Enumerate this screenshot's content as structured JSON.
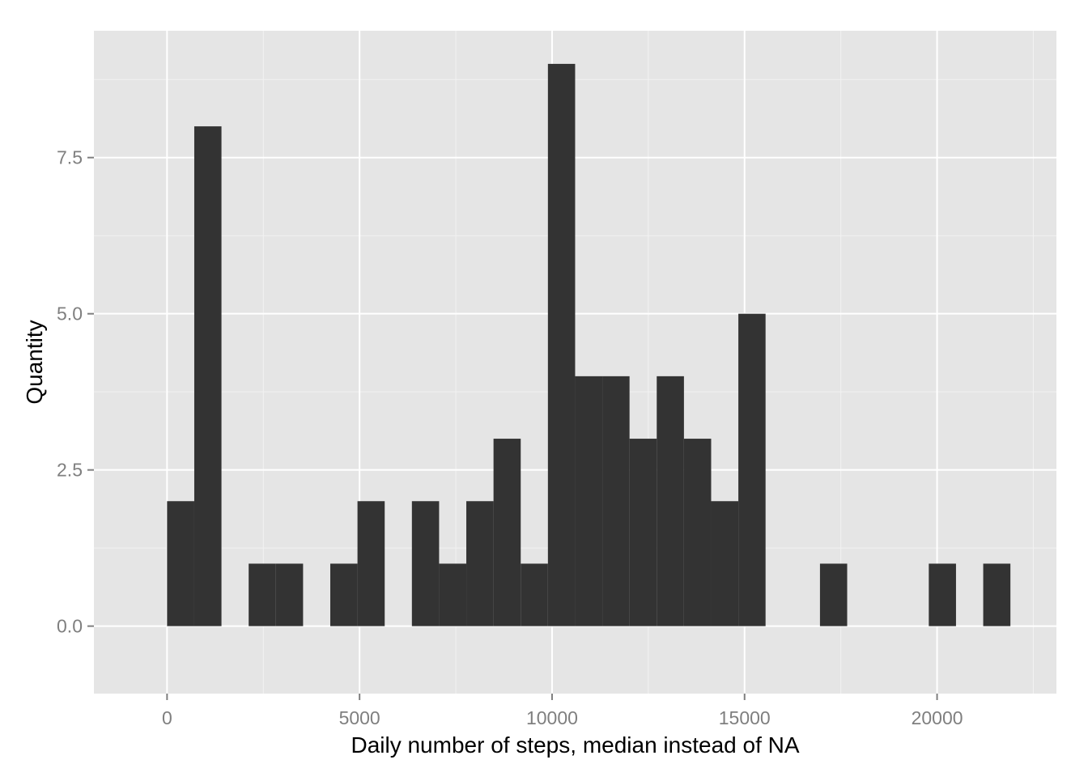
{
  "chart_data": {
    "type": "bar",
    "title": "",
    "xlabel": "Daily number of steps, median instead of NA",
    "ylabel": "Quantity",
    "xlim": [
      -1900,
      23100
    ],
    "ylim": [
      -1.08,
      9.53
    ],
    "x_ticks": [
      0,
      5000,
      10000,
      15000,
      20000
    ],
    "x_tick_labels": [
      "0",
      "5000",
      "10000",
      "15000",
      "20000"
    ],
    "y_ticks": [
      0,
      2.5,
      5,
      7.5
    ],
    "y_tick_labels": [
      "0.0",
      "2.5",
      "5.0",
      "7.5"
    ],
    "bin_width": 706.6,
    "bins": [
      {
        "x0": 0,
        "x1": 706.6,
        "count": 2
      },
      {
        "x0": 706.6,
        "x1": 1413.2,
        "count": 8
      },
      {
        "x0": 2119.8,
        "x1": 2826.4,
        "count": 1
      },
      {
        "x0": 2826.4,
        "x1": 3533,
        "count": 1
      },
      {
        "x0": 4239.6,
        "x1": 4946.2,
        "count": 1
      },
      {
        "x0": 4946.2,
        "x1": 5652.8,
        "count": 2
      },
      {
        "x0": 6359.4,
        "x1": 7066,
        "count": 2
      },
      {
        "x0": 7066,
        "x1": 7772.6,
        "count": 1
      },
      {
        "x0": 7772.6,
        "x1": 8479.2,
        "count": 2
      },
      {
        "x0": 8479.2,
        "x1": 9185.8,
        "count": 3
      },
      {
        "x0": 9185.8,
        "x1": 9892.4,
        "count": 1
      },
      {
        "x0": 9892.4,
        "x1": 10599,
        "count": 9
      },
      {
        "x0": 10599,
        "x1": 11305.6,
        "count": 4
      },
      {
        "x0": 11305.6,
        "x1": 12012.2,
        "count": 4
      },
      {
        "x0": 12012.2,
        "x1": 12718.8,
        "count": 3
      },
      {
        "x0": 12718.8,
        "x1": 13425.4,
        "count": 4
      },
      {
        "x0": 13425.4,
        "x1": 14132,
        "count": 3
      },
      {
        "x0": 14132,
        "x1": 14838.6,
        "count": 2
      },
      {
        "x0": 14838.6,
        "x1": 15545.2,
        "count": 5
      },
      {
        "x0": 16958.4,
        "x1": 17665,
        "count": 1
      },
      {
        "x0": 19785,
        "x1": 20491.6,
        "count": 1
      },
      {
        "x0": 21198.2,
        "x1": 21904.8,
        "count": 1
      }
    ],
    "grid": true,
    "legend": "none",
    "colors": {
      "panel_background": "#e5e5e5",
      "grid_major": "#ffffff",
      "grid_minor": "#f2f2f2",
      "bar_fill": "#333333",
      "tick_text": "#7f7f7f",
      "axis_title": "#000000"
    }
  }
}
